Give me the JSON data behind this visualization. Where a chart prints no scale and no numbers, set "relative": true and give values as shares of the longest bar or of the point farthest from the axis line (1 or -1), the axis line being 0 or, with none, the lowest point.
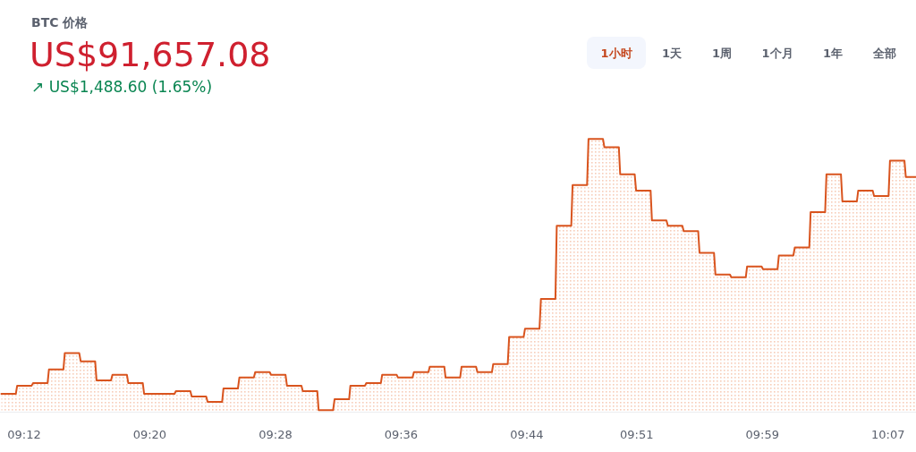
{
  "chart_data": {
    "type": "area",
    "title": "BTC 价格",
    "subtitle": "US$91,657.08",
    "annotations": [
      "↗ US$1,488.60 (1.65%)",
      "1小时",
      "1天",
      "1周",
      "1个月",
      "1年",
      "全部"
    ],
    "relative": true,
    "x": [
      9.1758,
      9.1912,
      9.1926,
      9.208,
      9.2095,
      9.2249,
      9.2263,
      9.2417,
      9.2431,
      9.2585,
      9.26,
      9.2754,
      9.2768,
      9.2922,
      9.2937,
      9.3091,
      9.3105,
      9.3259,
      9.3273,
      9.3427,
      9.3442,
      9.3596,
      9.361,
      9.3764,
      9.3778,
      9.3932,
      9.3947,
      9.4101,
      9.4115,
      9.4269,
      9.4284,
      9.4438,
      9.4452,
      9.4606,
      9.462,
      9.4774,
      9.4789,
      9.4943,
      9.4957,
      9.5111,
      9.5125,
      9.5279,
      9.5294,
      9.5448,
      9.5462,
      9.5616,
      9.5631,
      9.5785,
      9.5799,
      9.5953,
      9.5967,
      9.6121,
      9.6136,
      9.629,
      9.6304,
      9.6458,
      9.6472,
      9.6626,
      9.6641,
      9.6795,
      9.6809,
      9.6963,
      9.6977,
      9.7131,
      9.7146,
      9.73,
      9.7314,
      9.7468,
      9.7483,
      9.7637,
      9.7651,
      9.7805,
      9.7819,
      9.7973,
      9.7988,
      9.8142,
      9.8156,
      9.831,
      9.8324,
      9.8478,
      9.8493,
      9.8647,
      9.8661,
      9.8815,
      9.883,
      9.8984,
      9.8998,
      9.9152,
      9.9166,
      9.932,
      9.9335,
      9.9489,
      9.9503,
      9.9657,
      9.9671,
      9.9825,
      9.984,
      9.9994,
      10.0008,
      10.0162,
      10.0177,
      10.0331,
      10.0345,
      10.0499,
      10.0513,
      10.0667,
      10.0682,
      10.0836,
      10.085,
      10.1004,
      10.1018,
      10.1172,
      10.1187,
      10.1341,
      10.1355,
      10.1463
    ],
    "xlim": [
      9.1744,
      10.1463
    ],
    "xticks": [
      {
        "value": 9.2,
        "label": "09:12"
      },
      {
        "value": 9.3333,
        "label": "09:20"
      },
      {
        "value": 9.4667,
        "label": "09:28"
      },
      {
        "value": 9.6,
        "label": "09:36"
      },
      {
        "value": 9.7333,
        "label": "09:44"
      },
      {
        "value": 9.85,
        "label": "09:51"
      },
      {
        "value": 9.9833,
        "label": "09:59"
      },
      {
        "value": 10.1167,
        "label": "10:07"
      }
    ],
    "series": [
      {
        "color": "#d9541e",
        "values": [
          0.06,
          0.06,
          0.09,
          0.09,
          0.1,
          0.1,
          0.15,
          0.15,
          0.21,
          0.21,
          0.18,
          0.18,
          0.11,
          0.11,
          0.13,
          0.13,
          0.1,
          0.1,
          0.06,
          0.06,
          0.06,
          0.06,
          0.07,
          0.07,
          0.05,
          0.05,
          0.03,
          0.03,
          0.08,
          0.08,
          0.12,
          0.12,
          0.14,
          0.14,
          0.13,
          0.13,
          0.09,
          0.09,
          0.07,
          0.07,
          0,
          0,
          0.04,
          0.04,
          0.09,
          0.09,
          0.1,
          0.1,
          0.13,
          0.13,
          0.12,
          0.12,
          0.14,
          0.14,
          0.16,
          0.16,
          0.12,
          0.12,
          0.16,
          0.16,
          0.14,
          0.14,
          0.17,
          0.17,
          0.27,
          0.27,
          0.3,
          0.3,
          0.41,
          0.41,
          0.68,
          0.68,
          0.83,
          0.83,
          1,
          1,
          0.97,
          0.97,
          0.87,
          0.87,
          0.81,
          0.81,
          0.7,
          0.7,
          0.68,
          0.68,
          0.66,
          0.66,
          0.58,
          0.58,
          0.5,
          0.5,
          0.49,
          0.49,
          0.53,
          0.53,
          0.52,
          0.52,
          0.57,
          0.57,
          0.6,
          0.6,
          0.73,
          0.73,
          0.87,
          0.87,
          0.77,
          0.77,
          0.81,
          0.81,
          0.79,
          0.79,
          0.92,
          0.92,
          0.86,
          0.86
        ]
      }
    ]
  }
}
